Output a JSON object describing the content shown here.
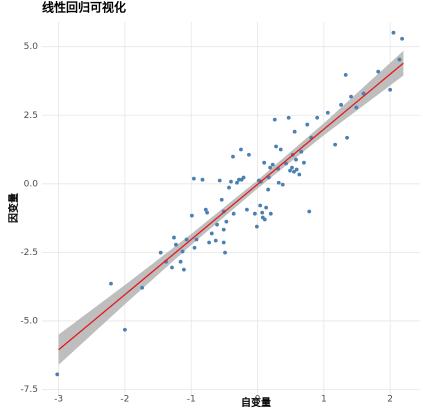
{
  "chart_data": {
    "type": "scatter",
    "title": "线性回归可视化",
    "xlabel": "自变量",
    "ylabel": "因变量",
    "xlim": [
      -3.25,
      2.45
    ],
    "ylim": [
      -7.7,
      5.9
    ],
    "xticks": [
      -3,
      -2,
      -1,
      0,
      1,
      2
    ],
    "yticks": [
      -7.5,
      {
        "value": -5,
        "label": "-5.0"
      },
      -2.5,
      {
        "value": 0,
        "label": "0.0"
      },
      2.5,
      {
        "value": 5,
        "label": "5.0"
      }
    ],
    "grid": true,
    "color": "#4a80b3",
    "x": [
      -3.02,
      -2.21,
      -2.0,
      -1.74,
      -1.46,
      -1.38,
      -1.29,
      -1.23,
      -1.26,
      -1.16,
      -1.11,
      -1.13,
      -1.07,
      -0.99,
      -0.96,
      -0.95,
      -0.92,
      -0.83,
      -0.78,
      -0.76,
      -0.73,
      -0.69,
      -0.63,
      -0.61,
      -0.57,
      -0.54,
      -0.51,
      -0.51,
      -0.51,
      -0.49,
      -0.47,
      -0.43,
      -0.4,
      -0.37,
      -0.36,
      -0.31,
      -0.28,
      -0.25,
      -0.24,
      -0.21,
      -0.16,
      -0.13,
      -0.04,
      -0.01,
      0.02,
      0.04,
      0.05,
      0.07,
      0.08,
      0.1,
      0.11,
      0.13,
      0.16,
      0.17,
      0.19,
      0.2,
      0.23,
      0.26,
      0.28,
      0.31,
      0.32,
      0.35,
      0.38,
      0.43,
      0.47,
      0.49,
      0.52,
      0.53,
      0.55,
      0.56,
      0.58,
      0.59,
      0.63,
      0.66,
      0.7,
      0.75,
      0.78,
      0.81,
      0.9,
      1.06,
      1.17,
      1.26,
      1.33,
      1.35,
      1.41,
      1.49,
      1.6,
      1.82,
      2.0,
      2.05,
      2.18,
      2.14
    ],
    "values": [
      -6.95,
      -3.64,
      -5.32,
      -3.79,
      -2.51,
      -2.84,
      -3.05,
      -2.22,
      -1.96,
      -2.84,
      -3.13,
      -2.47,
      -2.03,
      -1.16,
      0.19,
      -2.33,
      -2.03,
      0.15,
      -0.94,
      -1.05,
      -2.14,
      -1.81,
      -2.07,
      -1.49,
      0.12,
      -0.58,
      -1.01,
      -1.67,
      -2.14,
      -2.51,
      -1.38,
      -0.14,
      0.08,
      0.99,
      -1.09,
      0.04,
      0.15,
      1.25,
      0.15,
      0.23,
      -0.94,
      1.06,
      -1.09,
      -1.56,
      0.12,
      -0.79,
      0.08,
      -1.05,
      -1.23,
      0.77,
      -1.3,
      -0.87,
      -0.21,
      0.23,
      0.59,
      -1.09,
      0.7,
      2.34,
      1.36,
      0.55,
      0.04,
      1.25,
      -0.03,
      0.74,
      2.41,
      0.48,
      0.59,
      1.06,
      0.44,
      1.9,
      0.88,
      0.52,
      0.34,
      1.17,
      0.77,
      2.16,
      -1.01,
      1.68,
      2.41,
      2.59,
      1.43,
      2.88,
      3.97,
      1.68,
      3.18,
      2.78,
      3.29,
      4.09,
      3.43,
      5.51,
      5.29,
      4.53
    ],
    "fit": {
      "color": "#e41a1c",
      "band_color": "#b3b3b3",
      "x": [
        -3,
        -2,
        -1,
        0,
        1,
        2.2
      ],
      "y": [
        -6.05,
        -4.04,
        -2.03,
        -0.02,
        1.99,
        4.4
      ],
      "lower": [
        -6.6,
        -4.39,
        -2.23,
        -0.17,
        1.77,
        3.95
      ],
      "upper": [
        -5.5,
        -3.69,
        -1.83,
        0.13,
        2.21,
        4.85
      ]
    }
  }
}
